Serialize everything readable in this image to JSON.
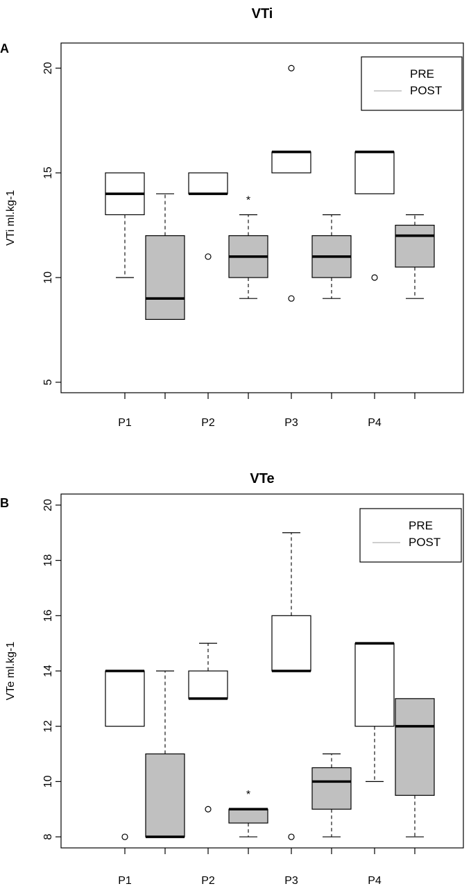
{
  "chart_data": [
    {
      "type": "box",
      "panel": "A",
      "title": "VTi",
      "xlabel": "",
      "ylabel": "VTi ml.kg-1",
      "ylim": [
        4.5,
        21.2
      ],
      "yticks": [
        5,
        10,
        15,
        20
      ],
      "categories": [
        "P1",
        "P2",
        "P3",
        "P4"
      ],
      "legend": {
        "placement": "top-right",
        "entries": [
          "PRE",
          "POST"
        ]
      },
      "series": [
        {
          "name": "PRE",
          "fill": "#ffffff",
          "boxes": [
            {
              "category": "P1",
              "q1": 13,
              "median": 14,
              "q3": 15,
              "whisker_low": 10,
              "whisker_high": 15,
              "outliers": []
            },
            {
              "category": "P2",
              "q1": 14,
              "median": 14,
              "q3": 15,
              "whisker_low": 14,
              "whisker_high": 15,
              "outliers": [
                11
              ]
            },
            {
              "category": "P3",
              "q1": 15,
              "median": 16,
              "q3": 16,
              "whisker_low": 15,
              "whisker_high": 16,
              "outliers": [
                20,
                9
              ]
            },
            {
              "category": "P4",
              "q1": 14,
              "median": 16,
              "q3": 16,
              "whisker_low": 14,
              "whisker_high": 16,
              "outliers": [
                10
              ]
            }
          ]
        },
        {
          "name": "POST",
          "fill": "#c0c0c0",
          "boxes": [
            {
              "category": "P1",
              "q1": 8,
              "median": 9,
              "q3": 12,
              "whisker_low": 8,
              "whisker_high": 14,
              "outliers": []
            },
            {
              "category": "P2",
              "q1": 10,
              "median": 11,
              "q3": 12,
              "whisker_low": 9,
              "whisker_high": 13,
              "outliers": [],
              "annotation": "*"
            },
            {
              "category": "P3",
              "q1": 10,
              "median": 11,
              "q3": 12,
              "whisker_low": 9,
              "whisker_high": 13,
              "outliers": []
            },
            {
              "category": "P4",
              "q1": 10.5,
              "median": 12,
              "q3": 12.5,
              "whisker_low": 9,
              "whisker_high": 13,
              "outliers": []
            }
          ]
        }
      ]
    },
    {
      "type": "box",
      "panel": "B",
      "title": "VTe",
      "xlabel": "",
      "ylabel": "VTe ml.kg-1",
      "ylim": [
        7.6,
        20.4
      ],
      "yticks": [
        8,
        10,
        12,
        14,
        16,
        18,
        20
      ],
      "categories": [
        "P1",
        "P2",
        "P3",
        "P4"
      ],
      "legend": {
        "placement": "top-right",
        "entries": [
          "PRE",
          "POST"
        ]
      },
      "series": [
        {
          "name": "PRE",
          "fill": "#ffffff",
          "boxes": [
            {
              "category": "P1",
              "q1": 12,
              "median": 14,
              "q3": 14,
              "whisker_low": 12,
              "whisker_high": 14,
              "outliers": [
                8
              ]
            },
            {
              "category": "P2",
              "q1": 13,
              "median": 13,
              "q3": 14,
              "whisker_low": 13,
              "whisker_high": 15,
              "outliers": [
                9
              ]
            },
            {
              "category": "P3",
              "q1": 14,
              "median": 14,
              "q3": 16,
              "whisker_low": 14,
              "whisker_high": 19,
              "outliers": [
                8
              ]
            },
            {
              "category": "P4",
              "q1": 12,
              "median": 15,
              "q3": 15,
              "whisker_low": 10,
              "whisker_high": 15,
              "outliers": []
            }
          ]
        },
        {
          "name": "POST",
          "fill": "#c0c0c0",
          "boxes": [
            {
              "category": "P1",
              "q1": 8,
              "median": 8,
              "q3": 11,
              "whisker_low": 8,
              "whisker_high": 14,
              "outliers": []
            },
            {
              "category": "P2",
              "q1": 8.5,
              "median": 9,
              "q3": 9,
              "whisker_low": 8,
              "whisker_high": 9,
              "outliers": [],
              "annotation": "*"
            },
            {
              "category": "P3",
              "q1": 9,
              "median": 10,
              "q3": 10.5,
              "whisker_low": 8,
              "whisker_high": 11,
              "outliers": []
            },
            {
              "category": "P4",
              "q1": 9.5,
              "median": 12,
              "q3": 13,
              "whisker_low": 8,
              "whisker_high": 13,
              "outliers": []
            }
          ]
        }
      ]
    }
  ]
}
